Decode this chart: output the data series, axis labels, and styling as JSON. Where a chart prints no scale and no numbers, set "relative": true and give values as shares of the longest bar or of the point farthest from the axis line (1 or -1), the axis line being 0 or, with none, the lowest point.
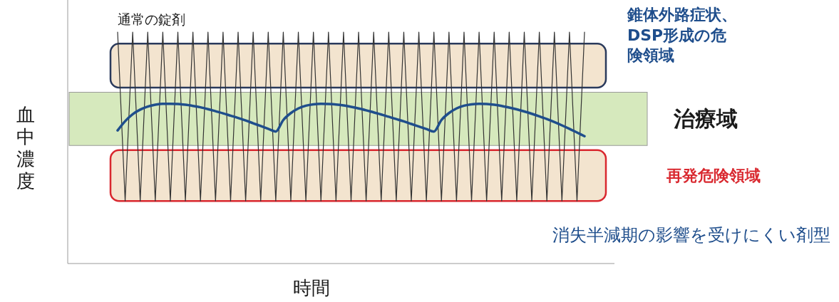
{
  "chart_data": {
    "type": "line",
    "relative": true,
    "xlabel": "時間",
    "ylabel": "血中濃度",
    "categories": [
      null,
      null,
      null,
      null,
      null,
      null,
      null,
      null,
      null,
      null,
      null,
      null,
      null,
      null,
      null,
      null,
      null,
      null,
      null,
      null,
      null,
      null,
      null,
      null,
      null,
      null,
      null,
      null,
      null,
      null,
      null,
      null,
      null,
      null,
      null,
      null,
      null,
      null,
      null,
      null,
      null,
      null,
      null,
      null,
      null,
      null,
      null,
      null,
      null,
      null,
      null,
      null,
      null,
      null,
      null,
      null,
      null,
      null,
      null,
      null,
      null,
      null,
      null
    ],
    "bands": [
      {
        "axis": "y",
        "from": 0.76,
        "to": 0.95,
        "label": "錐体外路症状、DSP形成の危険領域",
        "color": "#f3e4cf"
      },
      {
        "axis": "y",
        "from": 0.51,
        "to": 0.74,
        "label": "治療域",
        "color": "#d6e9bd"
      },
      {
        "axis": "y",
        "from": 0.27,
        "to": 0.49,
        "label": "再発危険領域",
        "color": "#f3e4cf"
      }
    ],
    "series": [
      {
        "name": "通常の錠剤",
        "color": "#333333",
        "values": [
          1,
          0.27,
          1,
          0.27,
          1,
          0.27,
          1,
          0.27,
          1,
          0.27,
          1,
          0.27,
          1,
          0.27,
          1,
          0.27,
          1,
          0.27,
          1,
          0.27,
          1,
          0.27,
          1,
          0.27,
          1,
          0.27,
          1,
          0.27,
          1,
          0.27,
          1,
          0.27,
          1,
          0.27,
          1,
          0.27,
          1,
          0.27,
          1,
          0.27,
          1,
          0.27,
          1,
          0.27,
          1,
          0.27,
          1,
          0.27,
          1,
          0.27,
          1,
          0.27,
          1,
          0.27,
          1,
          0.27,
          1,
          0.27,
          1,
          0.27,
          1,
          0.27,
          1
        ]
      },
      {
        "name": "消失半減期の影響を受けにくい剤型",
        "color": "#1f4e8c",
        "values": [
          0.575,
          0.615,
          0.645,
          0.665,
          0.678,
          0.686,
          0.69,
          0.69,
          0.689,
          0.686,
          0.681,
          0.675,
          0.667,
          0.658,
          0.649,
          0.639,
          0.629,
          0.618,
          0.606,
          0.594,
          0.582,
          0.57,
          0.62,
          0.65,
          0.67,
          0.682,
          0.688,
          0.69,
          0.689,
          0.687,
          0.683,
          0.677,
          0.67,
          0.662,
          0.653,
          0.644,
          0.634,
          0.624,
          0.614,
          0.603,
          0.592,
          0.581,
          0.57,
          0.62,
          0.65,
          0.67,
          0.682,
          0.688,
          0.69,
          0.689,
          0.686,
          0.681,
          0.674,
          0.666,
          0.657,
          0.647,
          0.636,
          0.624,
          0.611,
          0.597,
          0.582,
          0.566,
          0.55
        ]
      }
    ]
  }
}
